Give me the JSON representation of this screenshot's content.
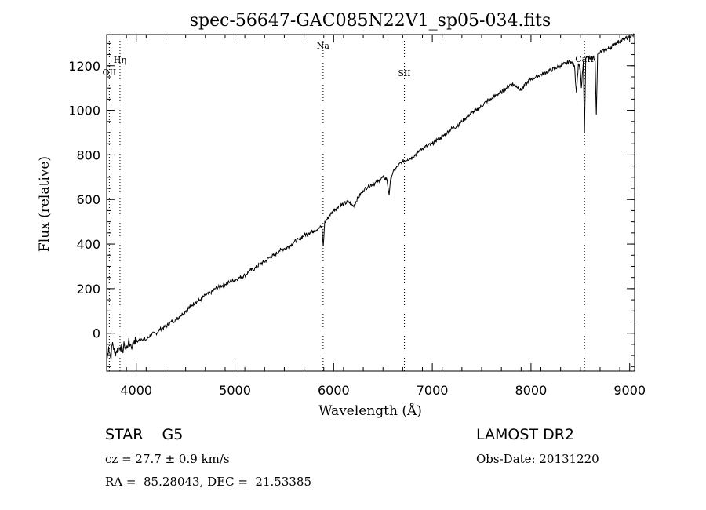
{
  "chart_data": {
    "type": "line",
    "title": "spec-56647-GAC085N22V1_sp05-034.fits",
    "xlabel": "Wavelength (Å)",
    "ylabel": "Flux (relative)",
    "xlim": [
      3700,
      9050
    ],
    "ylim": [
      -170,
      1340
    ],
    "x_ticks": [
      4000,
      5000,
      6000,
      7000,
      8000,
      9000
    ],
    "y_ticks": [
      0,
      200,
      400,
      600,
      800,
      1000,
      1200
    ],
    "grid": false,
    "line_color": "#000000",
    "series": [
      {
        "x": [
          3700,
          3720,
          3740,
          3760,
          3780,
          3800,
          3820,
          3840,
          3860,
          3880,
          3900,
          3920,
          3940,
          3960,
          3980,
          4000,
          4050,
          4100,
          4150,
          4200,
          4250,
          4300,
          4350,
          4400,
          4450,
          4500,
          4550,
          4600,
          4650,
          4700,
          4750,
          4800,
          4850,
          4900,
          4950,
          5000,
          5050,
          5100,
          5150,
          5200,
          5250,
          5300,
          5350,
          5400,
          5450,
          5500,
          5550,
          5600,
          5650,
          5700,
          5750,
          5800,
          5850,
          5880,
          5895,
          5910,
          5930,
          5960,
          6000,
          6050,
          6100,
          6150,
          6200,
          6250,
          6300,
          6350,
          6400,
          6450,
          6500,
          6540,
          6563,
          6580,
          6600,
          6650,
          6700,
          6750,
          6800,
          6850,
          6900,
          6950,
          7000,
          7050,
          7100,
          7150,
          7200,
          7250,
          7300,
          7350,
          7400,
          7450,
          7500,
          7550,
          7600,
          7650,
          7700,
          7750,
          7800,
          7850,
          7900,
          7950,
          8000,
          8050,
          8100,
          8150,
          8200,
          8250,
          8300,
          8350,
          8400,
          8440,
          8460,
          8480,
          8498,
          8510,
          8530,
          8542,
          8555,
          8570,
          8600,
          8630,
          8650,
          8662,
          8675,
          8700,
          8750,
          8800,
          8850,
          8900,
          8950,
          9000,
          9050
        ],
        "y": [
          -130,
          -60,
          -110,
          -40,
          -90,
          -80,
          -70,
          -60,
          -80,
          -50,
          -70,
          -40,
          -50,
          -60,
          -30,
          -40,
          -25,
          -30,
          -5,
          0,
          20,
          30,
          50,
          60,
          80,
          100,
          120,
          140,
          150,
          170,
          180,
          200,
          210,
          220,
          230,
          240,
          250,
          260,
          280,
          290,
          310,
          320,
          340,
          350,
          370,
          380,
          390,
          410,
          420,
          440,
          450,
          460,
          470,
          480,
          390,
          500,
          510,
          530,
          550,
          570,
          580,
          590,
          570,
          610,
          640,
          660,
          670,
          680,
          700,
          690,
          620,
          700,
          720,
          750,
          770,
          780,
          790,
          810,
          830,
          840,
          850,
          870,
          880,
          900,
          920,
          930,
          950,
          970,
          990,
          1000,
          1020,
          1040,
          1050,
          1070,
          1080,
          1100,
          1120,
          1110,
          1090,
          1120,
          1140,
          1150,
          1160,
          1170,
          1180,
          1190,
          1200,
          1210,
          1220,
          1200,
          1080,
          1210,
          1190,
          1100,
          1220,
          900,
          1230,
          1240,
          1230,
          1240,
          1220,
          980,
          1250,
          1260,
          1270,
          1280,
          1300,
          1310,
          1320,
          1330,
          1340
        ]
      }
    ],
    "lines": [
      {
        "label": "Hη",
        "x": 3835
      },
      {
        "label": "OII",
        "x": 3727
      },
      {
        "label": "Na",
        "x": 5893
      },
      {
        "label": "SII",
        "x": 6717
      },
      {
        "label": "CaII",
        "x": 8542
      }
    ]
  },
  "info": {
    "left_line1": "STAR    G5",
    "left_line2": "cz = 27.7 ± 0.9 km/s",
    "left_line3": "RA =  85.28043, DEC =  21.53385",
    "right_line1": "LAMOST DR2",
    "right_line2": "Obs-Date: 20131220"
  }
}
